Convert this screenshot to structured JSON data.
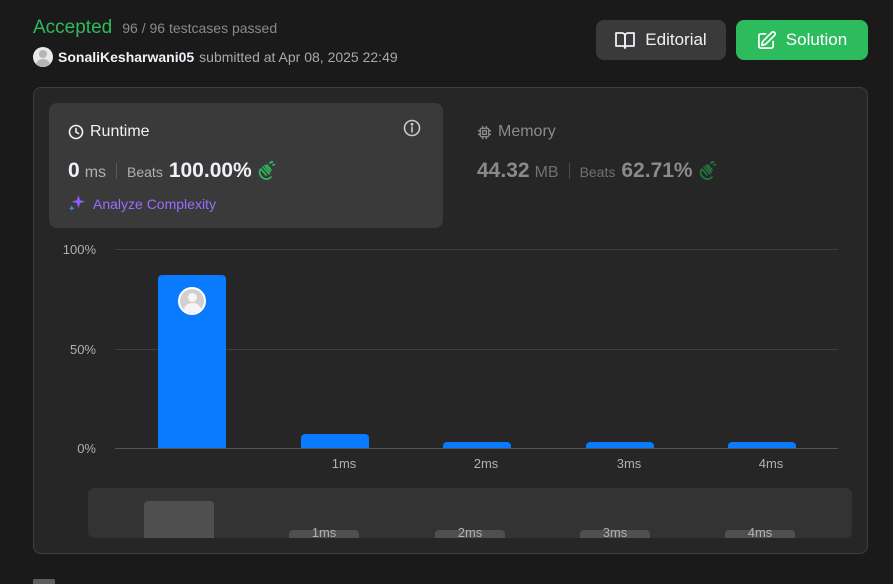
{
  "status": {
    "label": "Accepted",
    "testcases": "96 / 96 testcases passed"
  },
  "submitter": {
    "username": "SonaliKesharwani05",
    "meta": "submitted at Apr 08, 2025 22:49"
  },
  "buttons": {
    "editorial": "Editorial",
    "solution": "Solution"
  },
  "runtime": {
    "title": "Runtime",
    "value": "0",
    "unit": "ms",
    "beats_label": "Beats",
    "beats_pct": "100.00%",
    "analyze": "Analyze Complexity"
  },
  "memory": {
    "title": "Memory",
    "value": "44.32",
    "unit": "MB",
    "beats_label": "Beats",
    "beats_pct": "62.71%"
  },
  "colors": {
    "accepted": "#2cbb5d",
    "bar": "#0a7aff",
    "analyze": "#9b6dff"
  },
  "chart_data": {
    "type": "bar",
    "categories": [
      "",
      "1ms",
      "2ms",
      "3ms",
      "4ms"
    ],
    "values": [
      87,
      7,
      3,
      3,
      3
    ],
    "ytick_labels": [
      "100%",
      "50%",
      "0%"
    ],
    "yticks": [
      100,
      50,
      0
    ],
    "ylim": [
      0,
      100
    ],
    "grid": true,
    "highlighted_index": 0
  },
  "mini_chart": {
    "categories": [
      "",
      "1ms",
      "2ms",
      "3ms",
      "4ms"
    ],
    "values": [
      87,
      7,
      3,
      3,
      3
    ]
  }
}
